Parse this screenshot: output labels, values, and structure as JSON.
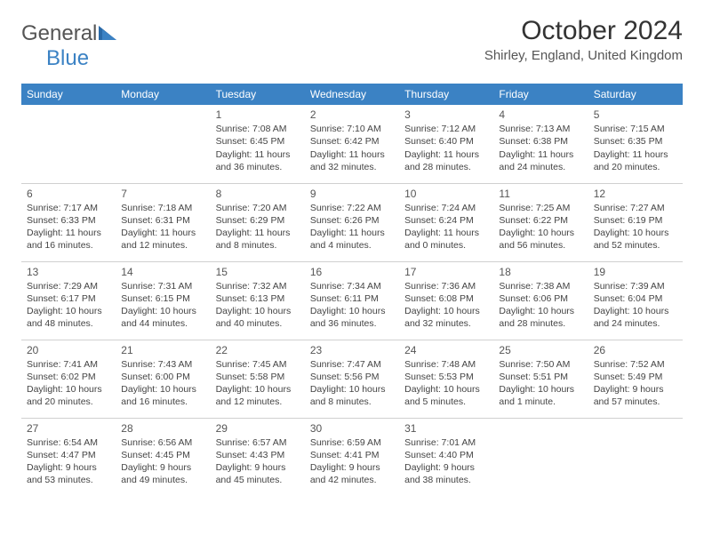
{
  "logo": {
    "word1": "General",
    "word2": "Blue"
  },
  "title": "October 2024",
  "location": "Shirley, England, United Kingdom",
  "columns": [
    "Sunday",
    "Monday",
    "Tuesday",
    "Wednesday",
    "Thursday",
    "Friday",
    "Saturday"
  ],
  "styles": {
    "header_bg": "#3b82c4",
    "header_text": "#ffffff",
    "rule_color": "#d0d0d0",
    "text_color": "#444444",
    "daynum_color": "#555555",
    "cell_fontsize": 10.5,
    "header_fontsize": 12
  },
  "grid": [
    [
      null,
      null,
      {
        "day": "1",
        "sunrise": "Sunrise: 7:08 AM",
        "sunset": "Sunset: 6:45 PM",
        "daylight1": "Daylight: 11 hours",
        "daylight2": "and 36 minutes."
      },
      {
        "day": "2",
        "sunrise": "Sunrise: 7:10 AM",
        "sunset": "Sunset: 6:42 PM",
        "daylight1": "Daylight: 11 hours",
        "daylight2": "and 32 minutes."
      },
      {
        "day": "3",
        "sunrise": "Sunrise: 7:12 AM",
        "sunset": "Sunset: 6:40 PM",
        "daylight1": "Daylight: 11 hours",
        "daylight2": "and 28 minutes."
      },
      {
        "day": "4",
        "sunrise": "Sunrise: 7:13 AM",
        "sunset": "Sunset: 6:38 PM",
        "daylight1": "Daylight: 11 hours",
        "daylight2": "and 24 minutes."
      },
      {
        "day": "5",
        "sunrise": "Sunrise: 7:15 AM",
        "sunset": "Sunset: 6:35 PM",
        "daylight1": "Daylight: 11 hours",
        "daylight2": "and 20 minutes."
      }
    ],
    [
      {
        "day": "6",
        "sunrise": "Sunrise: 7:17 AM",
        "sunset": "Sunset: 6:33 PM",
        "daylight1": "Daylight: 11 hours",
        "daylight2": "and 16 minutes."
      },
      {
        "day": "7",
        "sunrise": "Sunrise: 7:18 AM",
        "sunset": "Sunset: 6:31 PM",
        "daylight1": "Daylight: 11 hours",
        "daylight2": "and 12 minutes."
      },
      {
        "day": "8",
        "sunrise": "Sunrise: 7:20 AM",
        "sunset": "Sunset: 6:29 PM",
        "daylight1": "Daylight: 11 hours",
        "daylight2": "and 8 minutes."
      },
      {
        "day": "9",
        "sunrise": "Sunrise: 7:22 AM",
        "sunset": "Sunset: 6:26 PM",
        "daylight1": "Daylight: 11 hours",
        "daylight2": "and 4 minutes."
      },
      {
        "day": "10",
        "sunrise": "Sunrise: 7:24 AM",
        "sunset": "Sunset: 6:24 PM",
        "daylight1": "Daylight: 11 hours",
        "daylight2": "and 0 minutes."
      },
      {
        "day": "11",
        "sunrise": "Sunrise: 7:25 AM",
        "sunset": "Sunset: 6:22 PM",
        "daylight1": "Daylight: 10 hours",
        "daylight2": "and 56 minutes."
      },
      {
        "day": "12",
        "sunrise": "Sunrise: 7:27 AM",
        "sunset": "Sunset: 6:19 PM",
        "daylight1": "Daylight: 10 hours",
        "daylight2": "and 52 minutes."
      }
    ],
    [
      {
        "day": "13",
        "sunrise": "Sunrise: 7:29 AM",
        "sunset": "Sunset: 6:17 PM",
        "daylight1": "Daylight: 10 hours",
        "daylight2": "and 48 minutes."
      },
      {
        "day": "14",
        "sunrise": "Sunrise: 7:31 AM",
        "sunset": "Sunset: 6:15 PM",
        "daylight1": "Daylight: 10 hours",
        "daylight2": "and 44 minutes."
      },
      {
        "day": "15",
        "sunrise": "Sunrise: 7:32 AM",
        "sunset": "Sunset: 6:13 PM",
        "daylight1": "Daylight: 10 hours",
        "daylight2": "and 40 minutes."
      },
      {
        "day": "16",
        "sunrise": "Sunrise: 7:34 AM",
        "sunset": "Sunset: 6:11 PM",
        "daylight1": "Daylight: 10 hours",
        "daylight2": "and 36 minutes."
      },
      {
        "day": "17",
        "sunrise": "Sunrise: 7:36 AM",
        "sunset": "Sunset: 6:08 PM",
        "daylight1": "Daylight: 10 hours",
        "daylight2": "and 32 minutes."
      },
      {
        "day": "18",
        "sunrise": "Sunrise: 7:38 AM",
        "sunset": "Sunset: 6:06 PM",
        "daylight1": "Daylight: 10 hours",
        "daylight2": "and 28 minutes."
      },
      {
        "day": "19",
        "sunrise": "Sunrise: 7:39 AM",
        "sunset": "Sunset: 6:04 PM",
        "daylight1": "Daylight: 10 hours",
        "daylight2": "and 24 minutes."
      }
    ],
    [
      {
        "day": "20",
        "sunrise": "Sunrise: 7:41 AM",
        "sunset": "Sunset: 6:02 PM",
        "daylight1": "Daylight: 10 hours",
        "daylight2": "and 20 minutes."
      },
      {
        "day": "21",
        "sunrise": "Sunrise: 7:43 AM",
        "sunset": "Sunset: 6:00 PM",
        "daylight1": "Daylight: 10 hours",
        "daylight2": "and 16 minutes."
      },
      {
        "day": "22",
        "sunrise": "Sunrise: 7:45 AM",
        "sunset": "Sunset: 5:58 PM",
        "daylight1": "Daylight: 10 hours",
        "daylight2": "and 12 minutes."
      },
      {
        "day": "23",
        "sunrise": "Sunrise: 7:47 AM",
        "sunset": "Sunset: 5:56 PM",
        "daylight1": "Daylight: 10 hours",
        "daylight2": "and 8 minutes."
      },
      {
        "day": "24",
        "sunrise": "Sunrise: 7:48 AM",
        "sunset": "Sunset: 5:53 PM",
        "daylight1": "Daylight: 10 hours",
        "daylight2": "and 5 minutes."
      },
      {
        "day": "25",
        "sunrise": "Sunrise: 7:50 AM",
        "sunset": "Sunset: 5:51 PM",
        "daylight1": "Daylight: 10 hours",
        "daylight2": "and 1 minute."
      },
      {
        "day": "26",
        "sunrise": "Sunrise: 7:52 AM",
        "sunset": "Sunset: 5:49 PM",
        "daylight1": "Daylight: 9 hours",
        "daylight2": "and 57 minutes."
      }
    ],
    [
      {
        "day": "27",
        "sunrise": "Sunrise: 6:54 AM",
        "sunset": "Sunset: 4:47 PM",
        "daylight1": "Daylight: 9 hours",
        "daylight2": "and 53 minutes."
      },
      {
        "day": "28",
        "sunrise": "Sunrise: 6:56 AM",
        "sunset": "Sunset: 4:45 PM",
        "daylight1": "Daylight: 9 hours",
        "daylight2": "and 49 minutes."
      },
      {
        "day": "29",
        "sunrise": "Sunrise: 6:57 AM",
        "sunset": "Sunset: 4:43 PM",
        "daylight1": "Daylight: 9 hours",
        "daylight2": "and 45 minutes."
      },
      {
        "day": "30",
        "sunrise": "Sunrise: 6:59 AM",
        "sunset": "Sunset: 4:41 PM",
        "daylight1": "Daylight: 9 hours",
        "daylight2": "and 42 minutes."
      },
      {
        "day": "31",
        "sunrise": "Sunrise: 7:01 AM",
        "sunset": "Sunset: 4:40 PM",
        "daylight1": "Daylight: 9 hours",
        "daylight2": "and 38 minutes."
      },
      null,
      null
    ]
  ]
}
